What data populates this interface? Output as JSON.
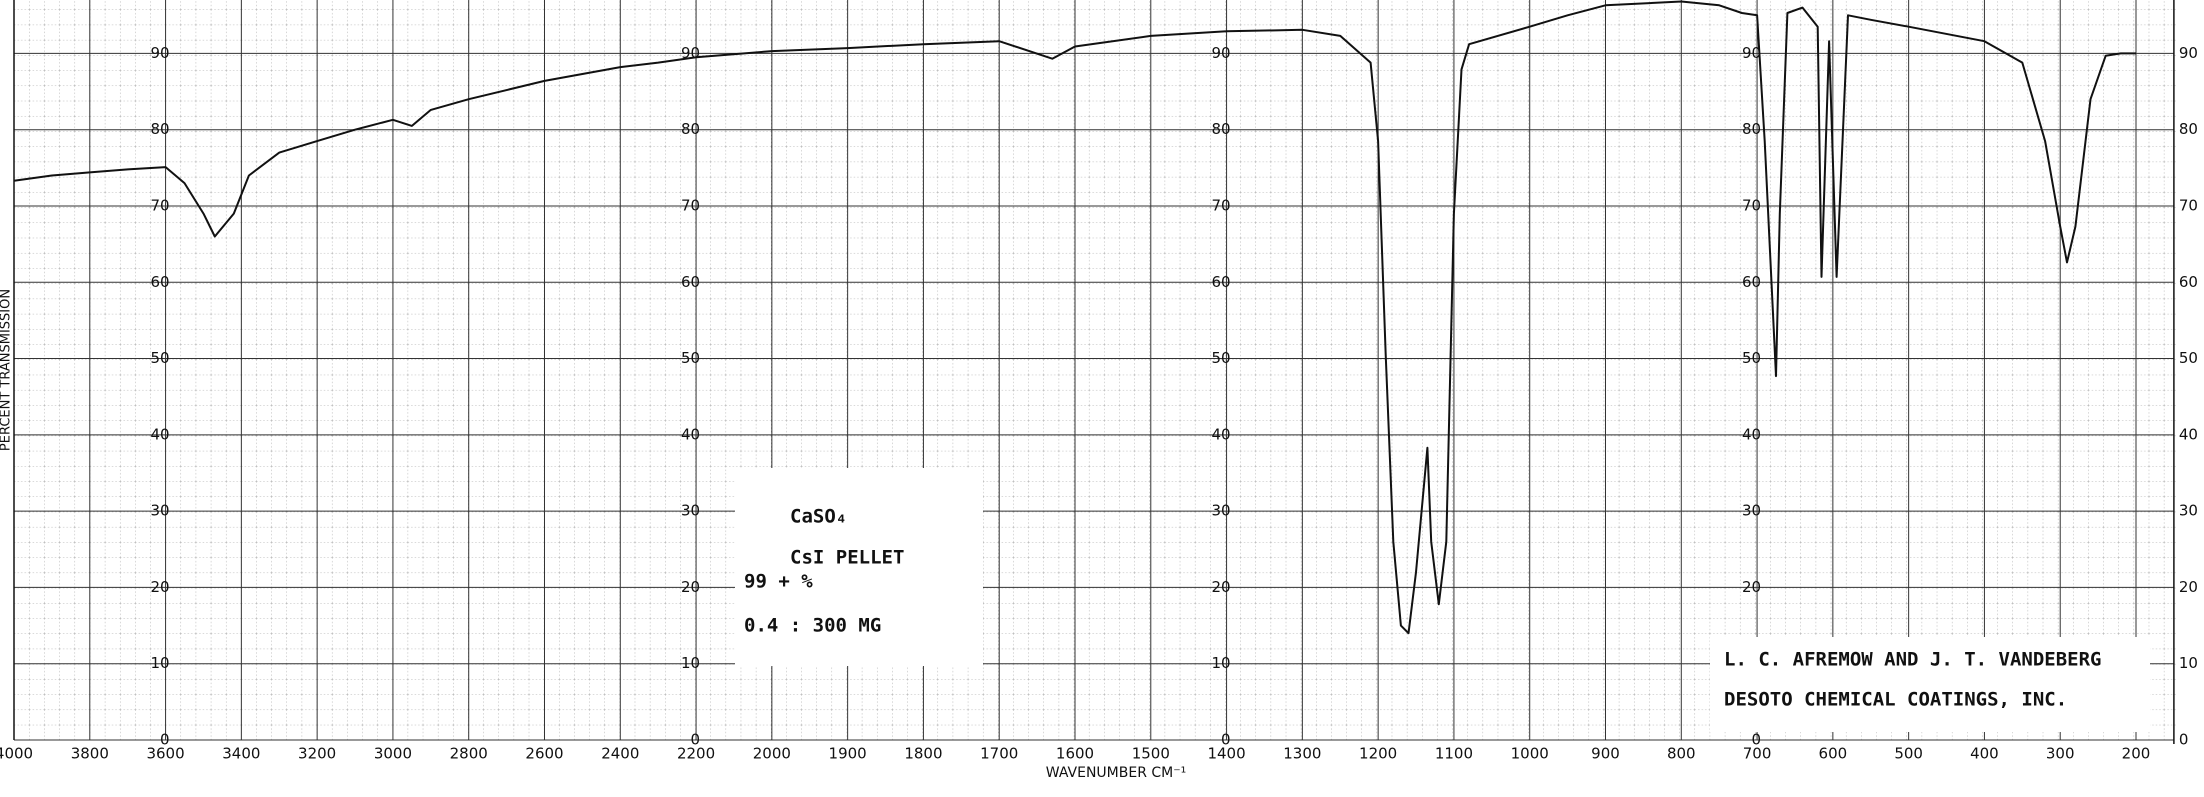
{
  "chart_data": {
    "type": "line",
    "x_label": "WAVENUMBER CM⁻¹",
    "y_label": "PERCENT TRANSMISSION",
    "annotations": [
      "CaSO₄",
      "CsI PELLET",
      "99 + %",
      "0.4 : 300 MG"
    ],
    "credits": [
      "L. C. AFREMOW AND J. T. VANDEBERG",
      "DESOTO CHEMICAL COATINGS, INC."
    ],
    "x": [
      4000,
      3900,
      3800,
      3700,
      3600,
      3550,
      3500,
      3470,
      3420,
      3380,
      3300,
      3200,
      3100,
      3000,
      2950,
      2900,
      2800,
      2600,
      2400,
      2300,
      2200,
      2000,
      1900,
      1800,
      1700,
      1630,
      1600,
      1500,
      1400,
      1300,
      1250,
      1210,
      1200,
      1190,
      1180,
      1170,
      1160,
      1150,
      1135,
      1130,
      1120,
      1110,
      1100,
      1090,
      1080,
      1000,
      950,
      900,
      800,
      750,
      720,
      700,
      690,
      675,
      670,
      660,
      640,
      620,
      615,
      605,
      595,
      580,
      550,
      500,
      400,
      350,
      320,
      300,
      291,
      280,
      260,
      240,
      220,
      200
    ],
    "values": [
      73.3,
      74,
      74.4,
      74.8,
      75.1,
      73,
      69,
      66,
      69,
      74,
      77,
      78.5,
      80,
      81.3,
      80.5,
      82.6,
      84,
      86.4,
      88.2,
      88.8,
      89.5,
      90.3,
      90.7,
      91.2,
      91.6,
      89.3,
      90.9,
      92.3,
      92.9,
      93.1,
      92.3,
      88.8,
      78.5,
      50.5,
      26,
      15,
      14,
      22,
      38.3,
      26,
      17.8,
      26,
      69,
      87.9,
      91.2,
      93.5,
      95,
      96.3,
      96.8,
      96.3,
      95.3,
      95,
      78.5,
      47.7,
      69,
      95.3,
      96,
      93.5,
      60.7,
      91.6,
      60.7,
      95,
      94.4,
      93.5,
      91.6,
      88.8,
      78.5,
      67.3,
      62.6,
      67.3,
      84,
      89.7,
      90,
      90
    ],
    "color": "#111111",
    "xlim": [
      4000,
      150
    ],
    "ylim": [
      0,
      97
    ],
    "xticks": [
      4000,
      3800,
      3600,
      3400,
      3200,
      3000,
      2800,
      2600,
      2400,
      2200,
      2000,
      1900,
      1800,
      1700,
      1600,
      1500,
      1400,
      1300,
      1200,
      1100,
      1000,
      900,
      800,
      700,
      600,
      500,
      400,
      300,
      200
    ],
    "yticks": [
      0,
      10,
      20,
      30,
      40,
      50,
      60,
      70,
      80,
      90
    ],
    "grid": true
  }
}
